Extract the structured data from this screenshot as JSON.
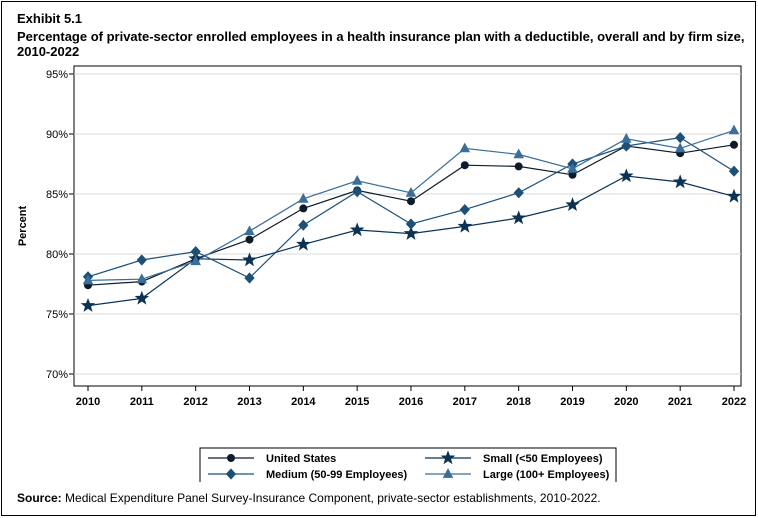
{
  "exhibit": "Exhibit 5.1",
  "chart_data": {
    "type": "line",
    "title": "Percentage of private-sector enrolled employees in a health insurance plan with a deductible, overall and by firm size, 2010-2022",
    "xlabel": "",
    "ylabel": "Percent",
    "ylim": [
      70,
      95
    ],
    "yticks": [
      70,
      75,
      80,
      85,
      90,
      95
    ],
    "ytick_labels": [
      "70%",
      "75%",
      "80%",
      "85%",
      "90%",
      "95%"
    ],
    "x": [
      "2010",
      "2011",
      "2012",
      "2013",
      "2014",
      "2015",
      "2016",
      "2017",
      "2018",
      "2019",
      "2020",
      "2021",
      "2022"
    ],
    "grid": "horizontal",
    "legend_position": "bottom",
    "series": [
      {
        "name": "United States",
        "marker": "circle",
        "color": "#0d1b2a",
        "values": [
          77.4,
          77.7,
          79.6,
          81.2,
          83.8,
          85.3,
          84.4,
          87.4,
          87.3,
          86.6,
          89.0,
          88.4,
          89.1
        ]
      },
      {
        "name": "Small (<50 Employees)",
        "marker": "star",
        "color": "#0b3354",
        "values": [
          75.7,
          76.3,
          79.6,
          79.5,
          80.8,
          82.0,
          81.7,
          82.3,
          83.0,
          84.1,
          86.5,
          86.0,
          84.8
        ]
      },
      {
        "name": "Medium (50-99 Employees)",
        "marker": "diamond",
        "color": "#1c5078",
        "values": [
          78.1,
          79.5,
          80.2,
          78.0,
          82.4,
          85.2,
          82.5,
          83.7,
          85.1,
          87.5,
          89.0,
          89.7,
          86.9
        ]
      },
      {
        "name": "Large (100+ Employees)",
        "marker": "triangle",
        "color": "#3b6e9a",
        "values": [
          77.8,
          77.9,
          79.4,
          81.9,
          84.6,
          86.1,
          85.1,
          88.8,
          88.3,
          87.1,
          89.6,
          88.8,
          90.3
        ]
      }
    ]
  },
  "source": {
    "label": "Source:",
    "text": " Medical Expenditure Panel Survey-Insurance Component, private-sector establishments, 2010-2022."
  }
}
